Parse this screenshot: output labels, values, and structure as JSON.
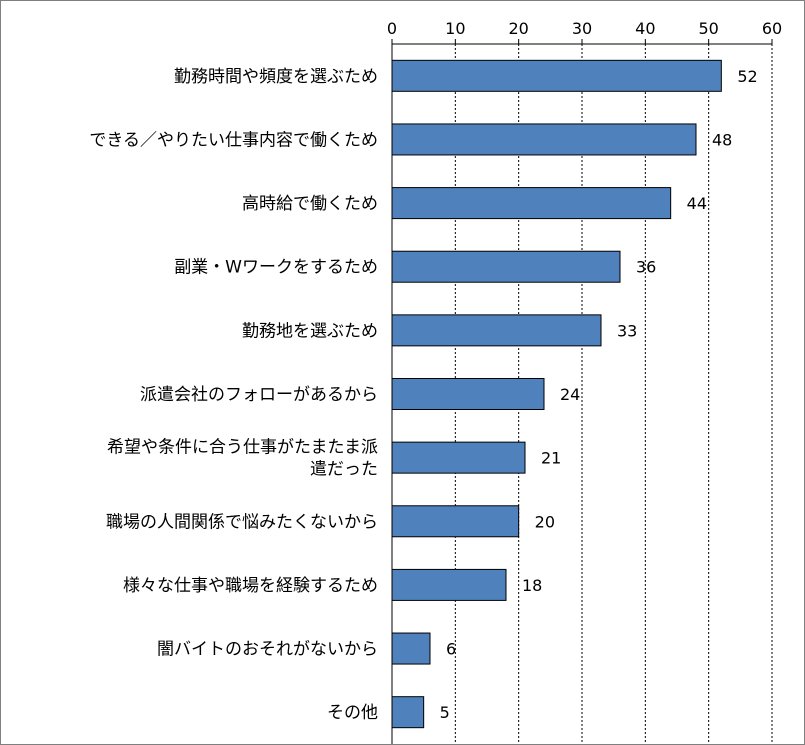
{
  "chart_data": {
    "type": "bar",
    "orientation": "horizontal",
    "categories": [
      "勤務時間や頻度を選ぶため",
      "できる／やりたい仕事内容で働くため",
      "高時給で働くため",
      "副業・Wワークをするため",
      "勤務地を選ぶため",
      "派遣会社のフォローがあるから",
      "希望や条件に合う仕事がたまたま派遣だった",
      "職場の人間関係で悩みたくないから",
      "様々な仕事や職場を経験するため",
      "闇バイトのおそれがないから",
      "その他"
    ],
    "category_lines": [
      [
        "勤務時間や頻度を選ぶため"
      ],
      [
        "できる／やりたい仕事内容で働くため"
      ],
      [
        "高時給で働くため"
      ],
      [
        "副業・Wワークをするため"
      ],
      [
        "勤務地を選ぶため"
      ],
      [
        "派遣会社のフォローがあるから"
      ],
      [
        "希望や条件に合う仕事がたまたま派",
        "遣だった"
      ],
      [
        "職場の人間関係で悩みたくないから"
      ],
      [
        "様々な仕事や職場を経験するため"
      ],
      [
        "闇バイトのおそれがないから"
      ],
      [
        "その他"
      ]
    ],
    "values": [
      52,
      48,
      44,
      36,
      33,
      24,
      21,
      20,
      18,
      6,
      5
    ],
    "value_labels": [
      "52",
      "48",
      "44",
      "36",
      "33",
      "24",
      "21",
      "20",
      "18",
      "6",
      "5"
    ],
    "x_ticks": [
      0,
      10,
      20,
      30,
      40,
      50,
      60
    ],
    "x_tick_labels": [
      "0",
      "10",
      "20",
      "30",
      "40",
      "50",
      "60"
    ],
    "xlim": [
      0,
      60
    ],
    "x_axis_position": "top",
    "grid": true,
    "bar_color": "#4F81BD",
    "title": "",
    "xlabel": "",
    "ylabel": ""
  }
}
